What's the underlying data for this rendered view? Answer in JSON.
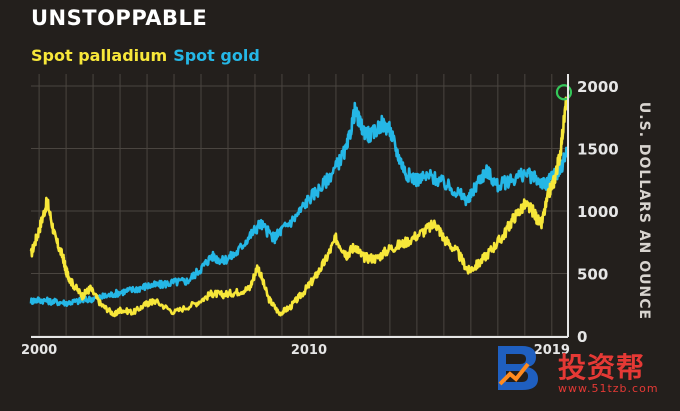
{
  "title": "UNSTOPPABLE",
  "legend": {
    "palladium": "Spot palladium",
    "gold": "Spot gold"
  },
  "colors": {
    "background": "#231f1c",
    "palladium": "#f7e73a",
    "gold": "#25b7e6",
    "grid": "#4a4540",
    "axis": "#e6e6e6",
    "highlight": "#34c759"
  },
  "watermark": {
    "text": "投资帮",
    "url": "www.51tzb.com"
  },
  "chart_data": {
    "type": "line",
    "ylabel": "U.S. DOLLARS AN OUNCE",
    "xlim": [
      1999.7,
      2019.6
    ],
    "ylim": [
      0,
      2000
    ],
    "yticks": [
      0,
      500,
      1000,
      1500,
      2000
    ],
    "xtick_labels": [
      {
        "year": 2000,
        "label": "2000"
      },
      {
        "year": 2010,
        "label": "2010"
      },
      {
        "year": 2019,
        "label": "2019"
      }
    ],
    "series": [
      {
        "name": "Spot palladium",
        "x": [
          1999.7,
          2000.0,
          2000.3,
          2000.6,
          2000.9,
          2001.0,
          2001.2,
          2001.6,
          2001.9,
          2002.3,
          2002.8,
          2003.0,
          2003.5,
          2004.0,
          2004.3,
          2005.0,
          2005.8,
          2006.4,
          2006.8,
          2007.3,
          2007.8,
          2008.1,
          2008.5,
          2008.9,
          2009.3,
          2009.8,
          2010.2,
          2010.6,
          2011.0,
          2011.4,
          2011.7,
          2012.0,
          2012.5,
          2013.0,
          2013.5,
          2014.2,
          2014.7,
          2015.0,
          2015.5,
          2015.9,
          2016.3,
          2016.8,
          2017.2,
          2017.6,
          2018.0,
          2018.3,
          2018.6,
          2018.9,
          2019.1,
          2019.3,
          2019.55
        ],
        "values": [
          650,
          850,
          1080,
          780,
          620,
          520,
          430,
          320,
          380,
          250,
          170,
          210,
          190,
          260,
          280,
          190,
          260,
          340,
          330,
          350,
          380,
          560,
          300,
          180,
          230,
          350,
          460,
          600,
          780,
          650,
          720,
          630,
          620,
          700,
          740,
          830,
          900,
          780,
          670,
          520,
          580,
          700,
          800,
          950,
          1050,
          1000,
          880,
          1150,
          1250,
          1450,
          1900
        ]
      },
      {
        "name": "Spot gold",
        "x": [
          1999.7,
          2000.0,
          2000.5,
          2001.0,
          2001.5,
          2002.0,
          2002.5,
          2003.0,
          2003.5,
          2004.0,
          2004.5,
          2005.0,
          2005.5,
          2006.0,
          2006.4,
          2006.8,
          2007.3,
          2007.8,
          2008.2,
          2008.7,
          2009.0,
          2009.5,
          2010.0,
          2010.5,
          2011.0,
          2011.4,
          2011.7,
          2012.0,
          2012.3,
          2012.7,
          2013.0,
          2013.3,
          2013.6,
          2014.0,
          2014.5,
          2015.0,
          2015.5,
          2015.9,
          2016.3,
          2016.6,
          2017.0,
          2017.5,
          2018.0,
          2018.5,
          2018.8,
          2019.0,
          2019.3,
          2019.55
        ],
        "values": [
          280,
          290,
          275,
          265,
          280,
          300,
          320,
          350,
          370,
          400,
          410,
          430,
          440,
          540,
          640,
          600,
          660,
          800,
          900,
          780,
          850,
          950,
          1100,
          1200,
          1350,
          1500,
          1800,
          1650,
          1600,
          1700,
          1650,
          1450,
          1300,
          1250,
          1280,
          1220,
          1150,
          1080,
          1250,
          1320,
          1200,
          1250,
          1300,
          1250,
          1200,
          1280,
          1320,
          1480
        ]
      }
    ],
    "highlight_point": {
      "x": 2019.45,
      "y": 1950
    }
  }
}
